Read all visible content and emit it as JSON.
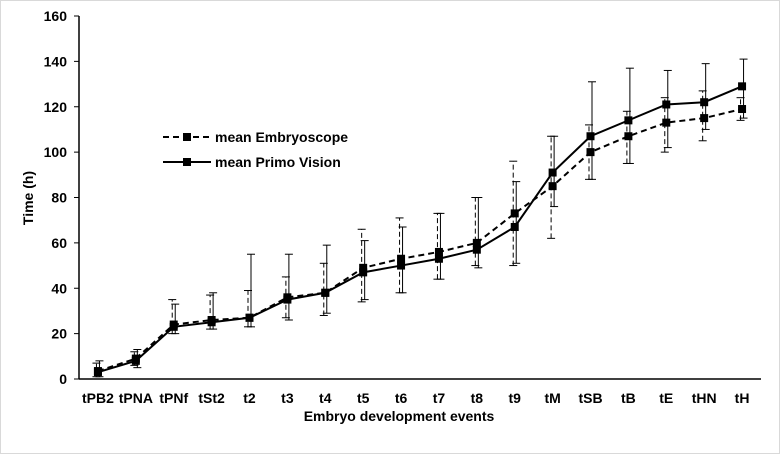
{
  "chart_data": {
    "type": "line",
    "title": "",
    "xlabel": "Embryo development events",
    "ylabel": "Time (h)",
    "ylim": [
      0,
      160
    ],
    "yticks": [
      0,
      20,
      40,
      60,
      80,
      100,
      120,
      140,
      160
    ],
    "grid": false,
    "legend_position": "left-middle",
    "categories": [
      "tPB2",
      "tPNA",
      "tPNf",
      "tSt2",
      "t2",
      "t3",
      "t4",
      "t5",
      "t6",
      "t7",
      "t8",
      "t9",
      "tM",
      "tSB",
      "tB",
      "tE",
      "tHN",
      "tH"
    ],
    "series": [
      {
        "name": "mean Embryoscope",
        "line_style": "dashed",
        "values": [
          3.5,
          9,
          24,
          26,
          27,
          36,
          38,
          49,
          53,
          56,
          60,
          73,
          85,
          100,
          107,
          113,
          115,
          119
        ],
        "error_low": [
          1,
          6,
          20,
          22,
          23,
          27,
          28,
          34,
          38,
          44,
          50,
          50,
          62,
          88,
          95,
          100,
          105,
          114
        ],
        "error_high": [
          7,
          12,
          35,
          37,
          39,
          45,
          51,
          66,
          71,
          73,
          80,
          96,
          107,
          112,
          118,
          124,
          127,
          124
        ]
      },
      {
        "name": "mean Primo Vision",
        "line_style": "solid",
        "values": [
          3,
          8,
          23,
          25,
          27,
          35,
          38,
          47,
          50,
          53,
          57,
          67,
          91,
          107,
          114,
          121,
          122,
          129
        ],
        "error_low": [
          1,
          5,
          20,
          22,
          23,
          26,
          29,
          35,
          38,
          44,
          49,
          51,
          76,
          88,
          95,
          102,
          110,
          115
        ],
        "error_high": [
          8,
          13,
          33,
          38,
          55,
          55,
          59,
          61,
          67,
          73,
          80,
          87,
          107,
          131,
          137,
          136,
          139,
          141
        ]
      }
    ]
  }
}
